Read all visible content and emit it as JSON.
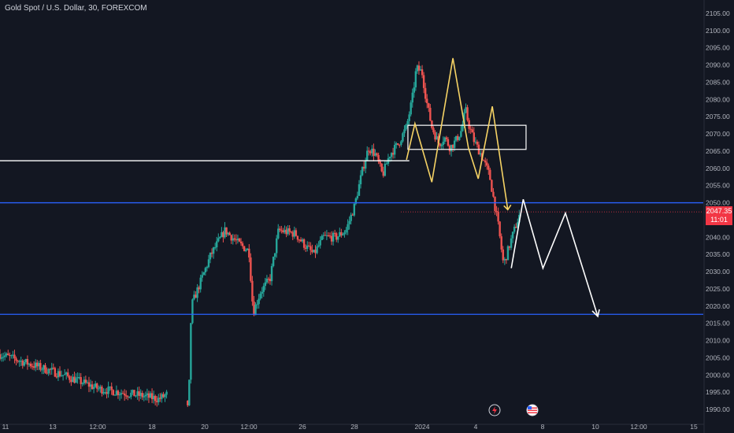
{
  "symbol_title": "Gold Spot / U.S. Dollar, 30, FOREXCOM",
  "last_price": "2047.35",
  "countdown": "11:01",
  "colors": {
    "background": "#131722",
    "up": "#26a69a",
    "down": "#ef5350",
    "blue_line": "#2962ff",
    "pattern_yellow": "#f6d365",
    "projection_white": "#ffffff",
    "price_tag": "#f23645",
    "axis_text": "#b2b5be"
  },
  "icons": [
    "lightning-icon",
    "flag-us-icon"
  ],
  "chart_data": {
    "type": "candlestick",
    "title": "",
    "xlabel": "",
    "ylabel": "",
    "ylim": [
      1988,
      2107
    ],
    "grid": false,
    "y_ticks": [
      "2105.00",
      "2100.00",
      "2095.00",
      "2090.00",
      "2085.00",
      "2080.00",
      "2075.00",
      "2070.00",
      "2065.00",
      "2060.00",
      "2055.00",
      "2050.00",
      "2045.00",
      "2040.00",
      "2035.00",
      "2030.00",
      "2025.00",
      "2020.00",
      "2015.00",
      "2010.00",
      "2005.00",
      "2000.00",
      "1995.00",
      "1990.00"
    ],
    "x_ticks": [
      "11",
      "13",
      "12:00",
      "18",
      "20",
      "12:00",
      "26",
      "28",
      "2024",
      "4",
      "8",
      "10",
      "12:00",
      "15"
    ],
    "price_path": [
      [
        0.0,
        2006
      ],
      [
        4.5,
        2000
      ],
      [
        7.0,
        1996
      ],
      [
        10.0,
        1994
      ],
      [
        11.3,
        1993
      ],
      [
        13.0,
        1997
      ],
      [
        13.4,
        1989
      ],
      [
        13.6,
        2020
      ],
      [
        15.0,
        2035
      ],
      [
        16.0,
        2042
      ],
      [
        17.0,
        2038
      ],
      [
        17.7,
        2036
      ],
      [
        18.0,
        2018
      ],
      [
        18.5,
        2024
      ],
      [
        19.2,
        2028
      ],
      [
        19.8,
        2042
      ],
      [
        21.0,
        2041
      ],
      [
        21.6,
        2038
      ],
      [
        22.3,
        2035
      ],
      [
        23.0,
        2040
      ],
      [
        23.9,
        2040
      ],
      [
        24.6,
        2042
      ],
      [
        25.2,
        2049
      ],
      [
        25.8,
        2060
      ],
      [
        26.2,
        2066
      ],
      [
        26.7,
        2064
      ],
      [
        27.2,
        2058
      ],
      [
        27.7,
        2064
      ],
      [
        28.3,
        2067
      ],
      [
        28.9,
        2072
      ],
      [
        29.3,
        2080
      ],
      [
        29.6,
        2089
      ],
      [
        30.0,
        2088
      ],
      [
        30.3,
        2080
      ],
      [
        30.7,
        2072
      ],
      [
        31.2,
        2067
      ],
      [
        31.6,
        2069
      ],
      [
        32.0,
        2066
      ],
      [
        32.4,
        2068
      ],
      [
        32.8,
        2071
      ],
      [
        33.1,
        2077
      ],
      [
        33.3,
        2073
      ],
      [
        33.7,
        2068
      ],
      [
        34.2,
        2064
      ],
      [
        34.8,
        2058
      ],
      [
        35.4,
        2044
      ],
      [
        35.8,
        2032
      ],
      [
        36.4,
        2040
      ],
      [
        37.0,
        2047.35
      ]
    ],
    "resistance_zone": {
      "x": [
        29.0,
        37.4
      ],
      "y": [
        2065.5,
        2072.5
      ]
    },
    "horizontal_levels": [
      {
        "y": 2062.2,
        "x": [
          0.0,
          29.1
        ],
        "color": "white"
      },
      {
        "y": 2050.0,
        "x": [
          0.0,
          50.0
        ],
        "color": "blue"
      },
      {
        "y": 2017.6,
        "x": [
          0.0,
          50.0
        ],
        "color": "blue"
      },
      {
        "y": 2047.35,
        "x": [
          28.5,
          50.0
        ],
        "color": "red-dotted"
      }
    ],
    "pattern_path": [
      [
        28.9,
        2062.5
      ],
      [
        29.5,
        2073
      ],
      [
        30.7,
        2056
      ],
      [
        32.2,
        2092
      ],
      [
        33.3,
        2066
      ],
      [
        34.0,
        2057
      ],
      [
        35.0,
        2078
      ],
      [
        36.1,
        2048
      ],
      [
        36.35,
        2031
      ],
      [
        37.2,
        2051
      ],
      [
        38.6,
        2031
      ],
      [
        40.2,
        2047
      ],
      [
        42.5,
        2017
      ]
    ]
  }
}
